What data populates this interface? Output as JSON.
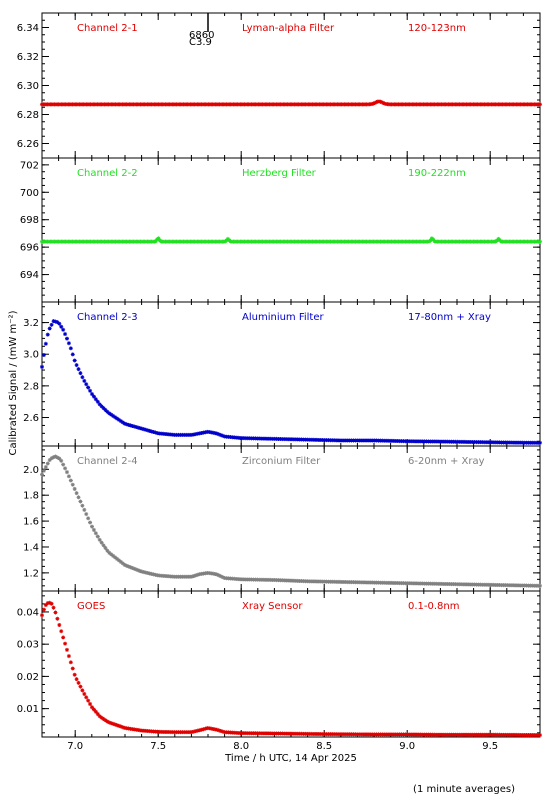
{
  "footnote": "(1 minute averages)",
  "marker": {
    "x": 7.8,
    "labels": [
      "6860",
      "C3.9"
    ]
  },
  "colors": {
    "red": "#e00000",
    "green": "#22e022",
    "blue": "#0000cc",
    "grey": "#808080"
  },
  "chart_data": [
    {
      "type": "scatter",
      "titles": [
        "Channel 2-1",
        "Lyman-alpha Filter",
        "120-123nm"
      ],
      "color": "#e00000",
      "ylim": [
        6.25,
        6.35
      ],
      "yticks": [
        6.26,
        6.28,
        6.3,
        6.32,
        6.34
      ],
      "ytick_labels": [
        "6.26",
        "6.28",
        "6.30",
        "6.32",
        "6.34"
      ],
      "baseline": 6.287,
      "bump": [
        {
          "x": 8.83,
          "amp": 0.002,
          "w": 0.03
        }
      ]
    },
    {
      "type": "scatter",
      "titles": [
        "Channel 2-2",
        "Herzberg Filter",
        "190-222nm"
      ],
      "color": "#22e022",
      "ylim": [
        692.0,
        702.5
      ],
      "yticks": [
        694,
        696,
        698,
        700,
        702
      ],
      "ytick_labels": [
        "694",
        "696",
        "698",
        "700",
        "702"
      ],
      "baseline": 696.4,
      "bump": [
        {
          "x": 7.5,
          "amp": 0.25,
          "w": 0.01
        },
        {
          "x": 7.92,
          "amp": 0.2,
          "w": 0.01
        },
        {
          "x": 9.15,
          "amp": 0.25,
          "w": 0.01
        },
        {
          "x": 9.55,
          "amp": 0.2,
          "w": 0.01
        }
      ]
    },
    {
      "type": "scatter",
      "titles": [
        "Channel 2-3",
        "Aluminium Filter",
        "17-80nm + Xray"
      ],
      "color": "#0000cc",
      "ylim": [
        2.42,
        3.33
      ],
      "yticks": [
        2.6,
        2.8,
        3.0,
        3.2
      ],
      "ytick_labels": [
        "2.6",
        "2.8",
        "3.0",
        "3.2"
      ],
      "points": [
        [
          6.8,
          2.92
        ],
        [
          6.82,
          3.05
        ],
        [
          6.84,
          3.15
        ],
        [
          6.87,
          3.21
        ],
        [
          6.9,
          3.2
        ],
        [
          6.93,
          3.15
        ],
        [
          6.97,
          3.05
        ],
        [
          7.0,
          2.95
        ],
        [
          7.05,
          2.84
        ],
        [
          7.1,
          2.75
        ],
        [
          7.15,
          2.68
        ],
        [
          7.2,
          2.63
        ],
        [
          7.3,
          2.56
        ],
        [
          7.4,
          2.53
        ],
        [
          7.5,
          2.5
        ],
        [
          7.6,
          2.49
        ],
        [
          7.7,
          2.49
        ],
        [
          7.75,
          2.5
        ],
        [
          7.8,
          2.51
        ],
        [
          7.85,
          2.5
        ],
        [
          7.9,
          2.48
        ],
        [
          8.0,
          2.47
        ],
        [
          8.2,
          2.465
        ],
        [
          8.4,
          2.46
        ],
        [
          8.6,
          2.455
        ],
        [
          8.8,
          2.455
        ],
        [
          9.0,
          2.45
        ],
        [
          9.2,
          2.448
        ],
        [
          9.4,
          2.445
        ],
        [
          9.6,
          2.442
        ],
        [
          9.8,
          2.44
        ]
      ]
    },
    {
      "type": "scatter",
      "titles": [
        "Channel 2-4",
        "Zirconium Filter",
        "6-20nm + Xray"
      ],
      "color": "#808080",
      "ylim": [
        1.06,
        2.18
      ],
      "yticks": [
        1.2,
        1.4,
        1.6,
        1.8,
        2.0
      ],
      "ytick_labels": [
        "1.2",
        "1.4",
        "1.6",
        "1.8",
        "2.0"
      ],
      "points": [
        [
          6.8,
          1.96
        ],
        [
          6.82,
          2.01
        ],
        [
          6.85,
          2.08
        ],
        [
          6.88,
          2.1
        ],
        [
          6.91,
          2.08
        ],
        [
          6.95,
          1.98
        ],
        [
          7.0,
          1.84
        ],
        [
          7.05,
          1.7
        ],
        [
          7.1,
          1.56
        ],
        [
          7.15,
          1.45
        ],
        [
          7.2,
          1.36
        ],
        [
          7.3,
          1.26
        ],
        [
          7.4,
          1.21
        ],
        [
          7.5,
          1.18
        ],
        [
          7.6,
          1.17
        ],
        [
          7.7,
          1.17
        ],
        [
          7.75,
          1.19
        ],
        [
          7.8,
          1.2
        ],
        [
          7.85,
          1.19
        ],
        [
          7.9,
          1.16
        ],
        [
          8.0,
          1.15
        ],
        [
          8.2,
          1.145
        ],
        [
          8.4,
          1.135
        ],
        [
          8.6,
          1.13
        ],
        [
          8.8,
          1.125
        ],
        [
          9.0,
          1.12
        ],
        [
          9.2,
          1.115
        ],
        [
          9.4,
          1.11
        ],
        [
          9.6,
          1.105
        ],
        [
          9.8,
          1.1
        ]
      ]
    },
    {
      "type": "scatter",
      "titles": [
        "GOES",
        "Xray Sensor",
        "0.1-0.8nm"
      ],
      "color": "#e00000",
      "ylim": [
        0.0012,
        0.0465
      ],
      "yticks": [
        0.01,
        0.02,
        0.03,
        0.04
      ],
      "ytick_labels": [
        "0.01",
        "0.02",
        "0.03",
        "0.04"
      ],
      "points": [
        [
          6.8,
          0.039
        ],
        [
          6.82,
          0.042
        ],
        [
          6.84,
          0.043
        ],
        [
          6.86,
          0.0425
        ],
        [
          6.88,
          0.04
        ],
        [
          6.91,
          0.035
        ],
        [
          6.94,
          0.03
        ],
        [
          6.97,
          0.025
        ],
        [
          7.0,
          0.02
        ],
        [
          7.05,
          0.015
        ],
        [
          7.1,
          0.0105
        ],
        [
          7.15,
          0.0075
        ],
        [
          7.2,
          0.0058
        ],
        [
          7.3,
          0.004
        ],
        [
          7.4,
          0.0032
        ],
        [
          7.5,
          0.0028
        ],
        [
          7.6,
          0.0027
        ],
        [
          7.7,
          0.0027
        ],
        [
          7.75,
          0.0033
        ],
        [
          7.8,
          0.004
        ],
        [
          7.85,
          0.0035
        ],
        [
          7.9,
          0.0027
        ],
        [
          8.0,
          0.0024
        ],
        [
          8.2,
          0.0023
        ],
        [
          8.5,
          0.0021
        ],
        [
          8.8,
          0.002
        ],
        [
          9.0,
          0.002
        ],
        [
          9.2,
          0.0019
        ],
        [
          9.5,
          0.0019
        ],
        [
          9.8,
          0.0018
        ]
      ]
    }
  ],
  "x_axis": {
    "label": "Time / h UTC, 14 Apr 2025",
    "xlim": [
      6.8,
      9.8
    ],
    "ticks": [
      7.0,
      7.5,
      8.0,
      8.5,
      9.0,
      9.5
    ],
    "tick_labels": [
      "7.0",
      "7.5",
      "8.0",
      "8.5",
      "9.0",
      "9.5"
    ]
  },
  "y_axis_label": "Calibrated Signal / (mW m⁻²)"
}
